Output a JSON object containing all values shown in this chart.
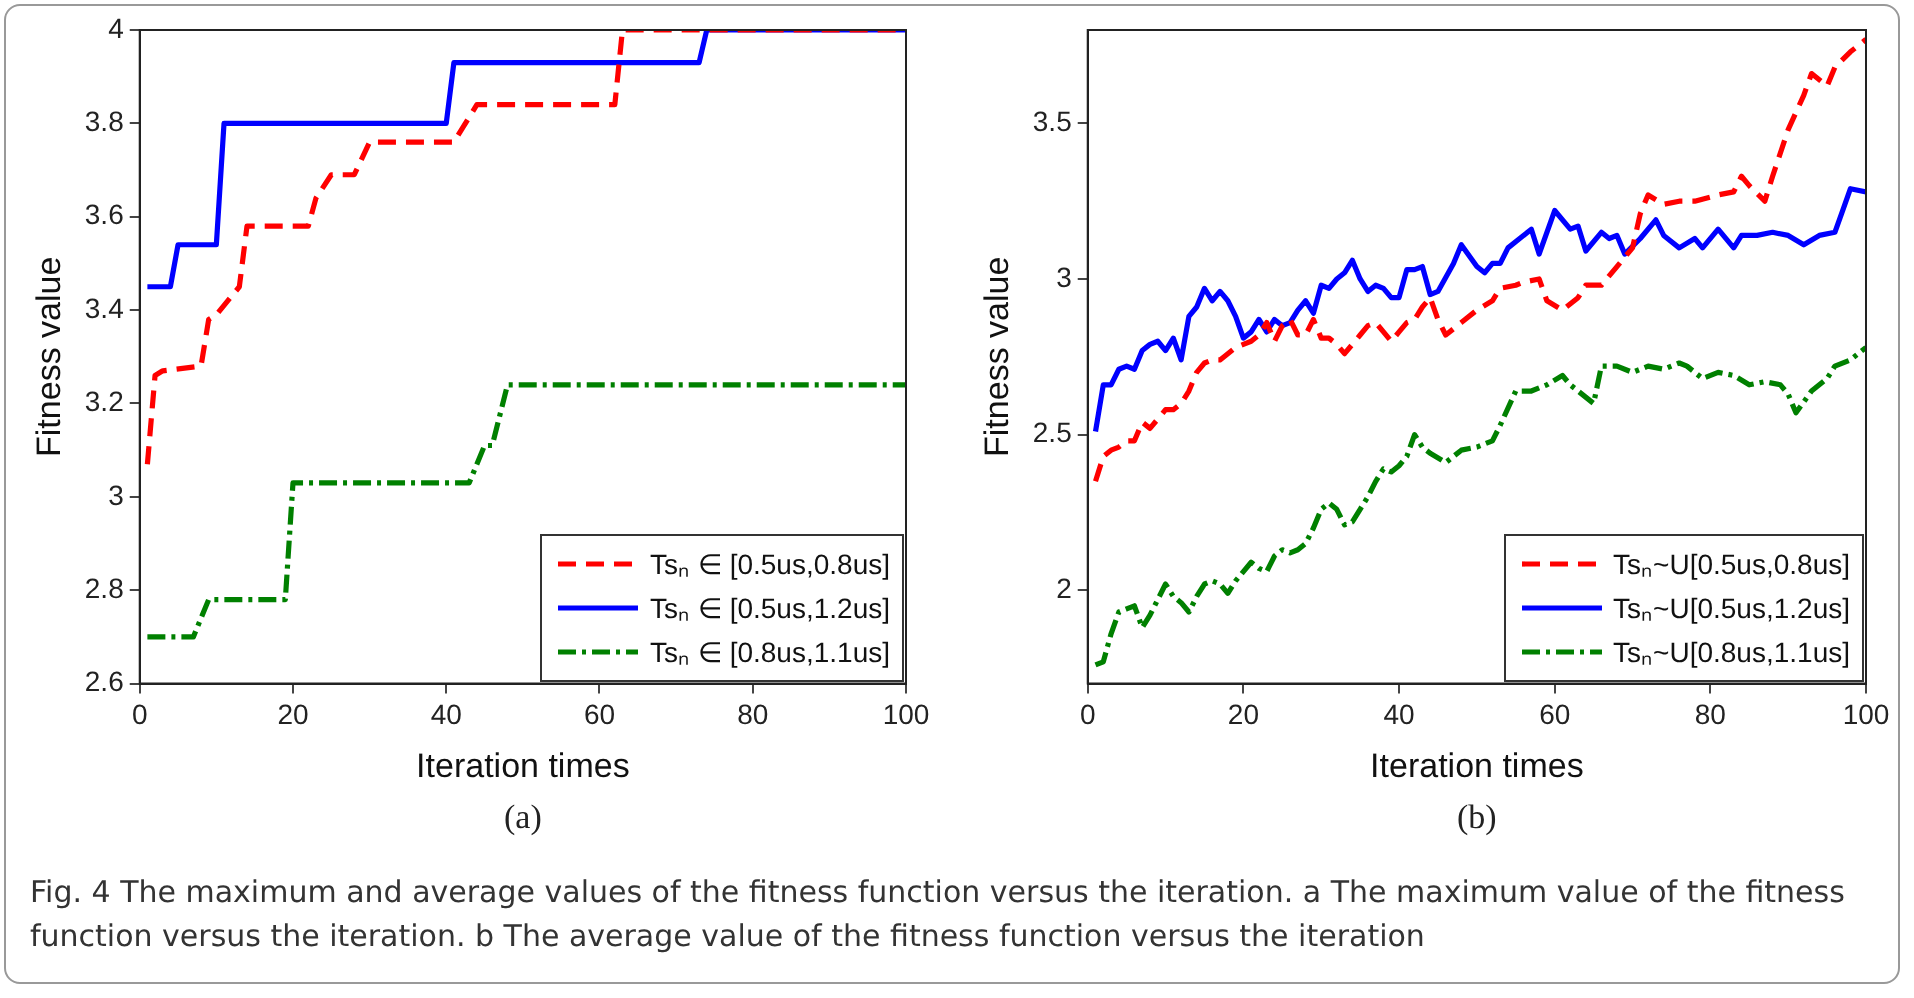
{
  "chart_data": [
    {
      "type": "line",
      "xlabel": "Iteration times",
      "ylabel": "Fitness value",
      "xlim": [
        0,
        100
      ],
      "xticks": [
        0,
        20,
        40,
        60,
        80,
        100
      ],
      "ylim": [
        2.6,
        4
      ],
      "yticks": [
        2.6,
        2.8,
        3,
        3.2,
        3.4,
        3.6,
        3.8,
        4
      ],
      "legend": "bottom right",
      "annotations": [
        "(a)"
      ],
      "series": [
        {
          "name": "Tsₙ ∈ [0.5us,0.8us]",
          "color": "#ff0000",
          "line_style": "dashed",
          "x": [
            1,
            2,
            3,
            8,
            9,
            10,
            13,
            14,
            22,
            23,
            25,
            28,
            30,
            41,
            44,
            62,
            63,
            100
          ],
          "values": [
            3.07,
            3.26,
            3.27,
            3.28,
            3.38,
            3.39,
            3.45,
            3.58,
            3.58,
            3.64,
            3.69,
            3.69,
            3.76,
            3.76,
            3.84,
            3.84,
            4.0,
            4.0
          ]
        },
        {
          "name": "Tsₙ ∈ [0.5us,1.2us]",
          "color": "#0000ff",
          "line_style": "solid",
          "x": [
            1,
            4,
            5,
            10,
            11,
            40,
            41,
            73,
            74,
            100
          ],
          "values": [
            3.45,
            3.45,
            3.54,
            3.54,
            3.8,
            3.8,
            3.93,
            3.93,
            4.0,
            4.0
          ]
        },
        {
          "name": "Tsₙ ∈ [0.8us,1.1us]",
          "color": "#008000",
          "line_style": "dashdot",
          "x": [
            1,
            7,
            9,
            19,
            20,
            43,
            45,
            46,
            48,
            100
          ],
          "values": [
            2.7,
            2.7,
            2.78,
            2.78,
            3.03,
            3.03,
            3.11,
            3.11,
            3.24,
            3.24
          ]
        }
      ]
    },
    {
      "type": "line",
      "xlabel": "Iteration times",
      "ylabel": "Fitness value",
      "xlim": [
        0,
        100
      ],
      "xticks": [
        0,
        20,
        40,
        60,
        80,
        100
      ],
      "ylim": [
        1.7,
        3.8
      ],
      "yticks": [
        2,
        2.5,
        3,
        3.5
      ],
      "legend": "bottom right",
      "annotations": [
        "(b)",
        "Fig. 4 The maximum and average values of the fitness function versus the iteration. a The maximum value of the fitness function versus the iteration. b The average value of the fitness function versus the iteration"
      ],
      "series": [
        {
          "name": "Tsₙ~U[0.5us,0.8us]",
          "color": "#ff0000",
          "line_style": "dashed",
          "x": [
            1,
            2,
            3,
            4,
            5,
            6,
            7,
            8,
            9,
            10,
            11,
            12,
            13,
            14,
            15,
            16,
            17,
            18,
            19,
            20,
            21,
            22,
            23,
            24,
            25,
            26,
            27,
            28,
            29,
            30,
            31,
            32,
            33,
            34,
            35,
            36,
            37,
            38,
            39,
            40,
            41,
            42,
            43,
            44,
            45,
            46,
            48,
            50,
            52,
            53,
            55,
            56,
            58,
            59,
            61,
            63,
            64,
            66,
            68,
            70,
            71,
            72,
            74,
            76,
            78,
            81,
            83,
            84,
            85,
            87,
            88,
            90,
            92,
            93,
            95,
            96,
            98,
            100
          ],
          "values": [
            2.35,
            2.43,
            2.45,
            2.46,
            2.48,
            2.48,
            2.54,
            2.52,
            2.55,
            2.58,
            2.58,
            2.6,
            2.64,
            2.7,
            2.73,
            2.74,
            2.74,
            2.76,
            2.78,
            2.79,
            2.8,
            2.82,
            2.86,
            2.8,
            2.85,
            2.87,
            2.82,
            2.82,
            2.87,
            2.81,
            2.81,
            2.79,
            2.76,
            2.79,
            2.82,
            2.85,
            2.86,
            2.83,
            2.8,
            2.83,
            2.86,
            2.87,
            2.91,
            2.94,
            2.87,
            2.82,
            2.86,
            2.9,
            2.93,
            2.97,
            2.98,
            2.99,
            3.0,
            2.93,
            2.9,
            2.94,
            2.98,
            2.98,
            3.04,
            3.1,
            3.21,
            3.27,
            3.24,
            3.25,
            3.25,
            3.27,
            3.28,
            3.33,
            3.3,
            3.25,
            3.33,
            3.48,
            3.59,
            3.66,
            3.62,
            3.68,
            3.73,
            3.77
          ]
        },
        {
          "name": "Tsₙ~U[0.5us,1.2us]",
          "color": "#0000ff",
          "line_style": "solid",
          "x": [
            1,
            2,
            3,
            4,
            5,
            6,
            7,
            8,
            9,
            10,
            11,
            12,
            13,
            14,
            15,
            16,
            17,
            18,
            19,
            20,
            21,
            22,
            23,
            24,
            25,
            26,
            27,
            28,
            29,
            30,
            31,
            32,
            33,
            34,
            35,
            36,
            37,
            38,
            39,
            40,
            41,
            42,
            43,
            44,
            45,
            47,
            48,
            50,
            51,
            52,
            53,
            54,
            57,
            58,
            60,
            62,
            63,
            64,
            66,
            67,
            68,
            69,
            71,
            73,
            74,
            76,
            78,
            79,
            81,
            83,
            84,
            86,
            88,
            90,
            92,
            94,
            96,
            97,
            98,
            100
          ],
          "values": [
            2.51,
            2.66,
            2.66,
            2.71,
            2.72,
            2.71,
            2.77,
            2.79,
            2.8,
            2.77,
            2.81,
            2.74,
            2.88,
            2.91,
            2.97,
            2.93,
            2.96,
            2.93,
            2.88,
            2.81,
            2.83,
            2.87,
            2.83,
            2.87,
            2.85,
            2.86,
            2.9,
            2.93,
            2.89,
            2.98,
            2.97,
            3.0,
            3.02,
            3.06,
            3.0,
            2.96,
            2.98,
            2.97,
            2.94,
            2.94,
            3.03,
            3.03,
            3.04,
            2.95,
            2.96,
            3.05,
            3.11,
            3.04,
            3.02,
            3.05,
            3.05,
            3.1,
            3.16,
            3.08,
            3.22,
            3.16,
            3.17,
            3.09,
            3.15,
            3.13,
            3.14,
            3.08,
            3.13,
            3.19,
            3.14,
            3.1,
            3.13,
            3.1,
            3.16,
            3.1,
            3.14,
            3.14,
            3.15,
            3.14,
            3.11,
            3.14,
            3.15,
            3.22,
            3.29,
            3.28
          ]
        },
        {
          "name": "Tsₙ~U[0.8us,1.1us]",
          "color": "#008000",
          "line_style": "dashdot",
          "x": [
            1,
            2,
            3,
            4,
            5,
            6,
            7,
            8,
            9,
            10,
            11,
            12,
            13,
            14,
            15,
            16,
            17,
            18,
            19,
            20,
            21,
            22,
            23,
            24,
            25,
            26,
            27,
            28,
            29,
            30,
            31,
            32,
            33,
            34,
            35,
            36,
            37,
            38,
            39,
            40,
            41,
            42,
            43,
            44,
            46,
            48,
            50,
            52,
            53,
            55,
            57,
            59,
            61,
            62,
            65,
            66,
            68,
            70,
            72,
            74,
            76,
            77,
            79,
            81,
            83,
            85,
            87,
            89,
            90,
            91,
            93,
            95,
            96,
            98,
            100
          ],
          "values": [
            1.76,
            1.77,
            1.86,
            1.93,
            1.94,
            1.95,
            1.88,
            1.92,
            1.97,
            2.02,
            1.98,
            1.96,
            1.93,
            1.98,
            2.02,
            2.03,
            2.02,
            1.99,
            2.03,
            2.06,
            2.09,
            2.07,
            2.06,
            2.11,
            2.13,
            2.12,
            2.13,
            2.15,
            2.2,
            2.26,
            2.28,
            2.26,
            2.21,
            2.22,
            2.26,
            2.3,
            2.35,
            2.39,
            2.38,
            2.4,
            2.43,
            2.5,
            2.46,
            2.44,
            2.41,
            2.45,
            2.46,
            2.48,
            2.53,
            2.64,
            2.64,
            2.66,
            2.69,
            2.66,
            2.6,
            2.72,
            2.72,
            2.7,
            2.72,
            2.71,
            2.73,
            2.72,
            2.68,
            2.7,
            2.69,
            2.66,
            2.67,
            2.66,
            2.63,
            2.57,
            2.64,
            2.68,
            2.72,
            2.74,
            2.78
          ]
        }
      ]
    }
  ]
}
